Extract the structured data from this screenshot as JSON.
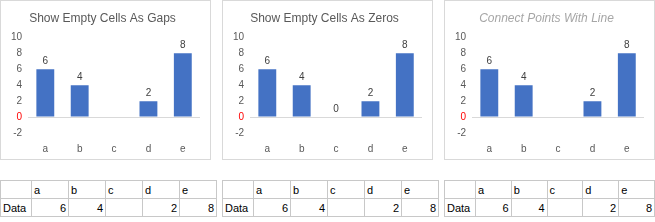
{
  "chart_data": [
    {
      "type": "bar",
      "title": "Show Empty Cells As Gaps",
      "categories": [
        "a",
        "b",
        "c",
        "d",
        "e"
      ],
      "values": [
        6,
        4,
        null,
        2,
        8
      ],
      "color": "#4472c4",
      "ylim": [
        -2,
        10
      ],
      "yticks": [
        -2,
        0,
        2,
        4,
        6,
        8,
        10
      ],
      "grid": false,
      "data_labels": true
    },
    {
      "type": "bar",
      "title": "Show Empty Cells As Zeros",
      "categories": [
        "a",
        "b",
        "c",
        "d",
        "e"
      ],
      "values": [
        6,
        4,
        0,
        2,
        8
      ],
      "color": "#4472c4",
      "ylim": [
        -2,
        10
      ],
      "yticks": [
        -2,
        0,
        2,
        4,
        6,
        8,
        10
      ],
      "grid": false,
      "data_labels": true
    },
    {
      "type": "bar",
      "title": "Connect Points With Line",
      "categories": [
        "a",
        "b",
        "c",
        "d",
        "e"
      ],
      "values": [
        6,
        4,
        null,
        2,
        8
      ],
      "color": "#4472c4",
      "ylim": [
        -2,
        10
      ],
      "yticks": [
        -2,
        0,
        2,
        4,
        6,
        8,
        10
      ],
      "grid": false,
      "data_labels": true
    }
  ],
  "tables": [
    {
      "header": [
        "a",
        "b",
        "c",
        "d",
        "e"
      ],
      "rows": [
        {
          "label": "Data",
          "values": [
            6,
            4,
            null,
            2,
            8
          ]
        }
      ]
    },
    {
      "header": [
        "a",
        "b",
        "c",
        "d",
        "e"
      ],
      "rows": [
        {
          "label": "Data",
          "values": [
            6,
            4,
            null,
            2,
            8
          ]
        }
      ]
    },
    {
      "header": [
        "a",
        "b",
        "c",
        "d",
        "e"
      ],
      "rows": [
        {
          "label": "Data",
          "values": [
            6,
            4,
            null,
            2,
            8
          ]
        }
      ]
    }
  ]
}
